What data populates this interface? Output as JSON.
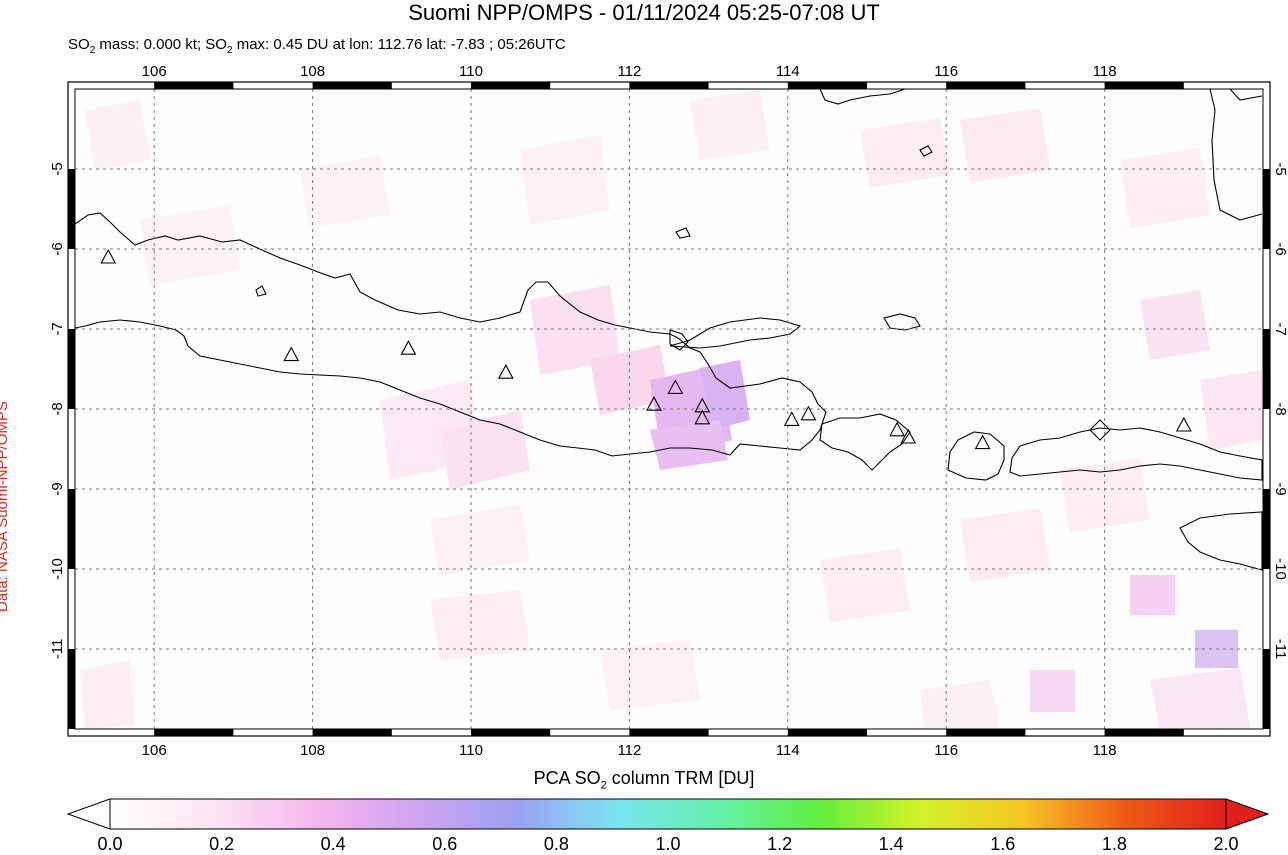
{
  "title": "Suomi NPP/OMPS - 01/11/2024 05:25-07:08 UT",
  "subtitle": {
    "p1": "SO",
    "sub1": "2",
    "p2": " mass: 0.000 kt; SO",
    "sub2": "2",
    "p3": " max: 0.45 DU at lon: 112.76 lat: -7.83 ; 05:26UTC"
  },
  "credit": "Data: NASA Suomi-NPP/OMPS",
  "map": {
    "lon_range": [
      105,
      120
    ],
    "lat_range": [
      -12,
      -4
    ],
    "lon_ticks": [
      "106",
      "108",
      "110",
      "112",
      "114",
      "116",
      "118"
    ],
    "lat_ticks": [
      "-5",
      "-6",
      "-7",
      "-8",
      "-9",
      "-10",
      "-11"
    ],
    "grid": "dashed",
    "volcano_symbol": "triangle",
    "volcanoes": [
      {
        "lon": 105.42,
        "lat": -6.1
      },
      {
        "lon": 107.73,
        "lat": -7.32
      },
      {
        "lon": 109.21,
        "lat": -7.24
      },
      {
        "lon": 110.44,
        "lat": -7.54
      },
      {
        "lon": 112.31,
        "lat": -7.94
      },
      {
        "lon": 112.58,
        "lat": -7.73
      },
      {
        "lon": 112.92,
        "lat": -7.96
      },
      {
        "lon": 112.92,
        "lat": -8.11
      },
      {
        "lon": 114.05,
        "lat": -8.13
      },
      {
        "lon": 114.26,
        "lat": -8.06
      },
      {
        "lon": 115.38,
        "lat": -8.26
      },
      {
        "lon": 115.52,
        "lat": -8.35
      },
      {
        "lon": 116.46,
        "lat": -8.42
      },
      {
        "lon": 119.0,
        "lat": -8.2
      }
    ]
  },
  "colorbar": {
    "title_p1": "PCA SO",
    "title_sub": "2",
    "title_p2": " column TRM [DU]",
    "ticks": [
      "0.0",
      "0.2",
      "0.4",
      "0.6",
      "0.8",
      "1.0",
      "1.2",
      "1.4",
      "1.6",
      "1.8",
      "2.0"
    ],
    "colors": [
      "#ffffff",
      "#fde6f2",
      "#f7b7ee",
      "#d0a4f0",
      "#9ca0f2",
      "#7be4f2",
      "#64f0a8",
      "#62ee3e",
      "#d3f228",
      "#f7c624",
      "#ee5a16",
      "#e0201a"
    ]
  },
  "legend_colors": {
    "credit": "#e02a18",
    "coast": "#000000",
    "grid": "#777777"
  }
}
